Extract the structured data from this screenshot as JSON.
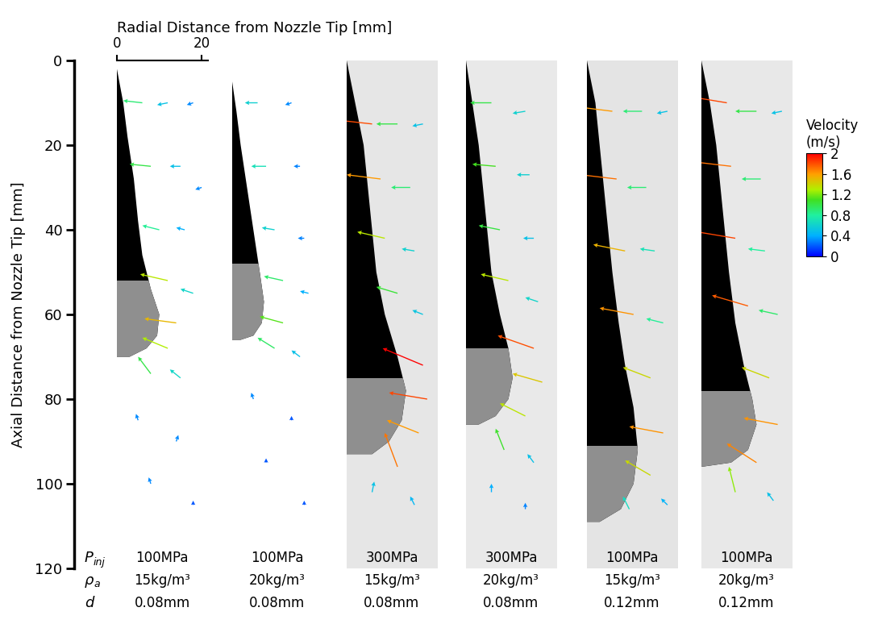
{
  "chart_data": {
    "type": "quiver",
    "x_label": "Radial Distance from Nozzle Tip [mm]",
    "xlim": [
      0,
      21.5
    ],
    "xticks": [
      0,
      20
    ],
    "y_label": "Axial Distance from Nozzle Tip [mm]",
    "ylim": [
      120,
      0
    ],
    "yticks": [
      0,
      20,
      40,
      60,
      80,
      100,
      120
    ],
    "colorbar": {
      "label": "Velocity\n(m/s)",
      "range": [
        0,
        2
      ],
      "ticks": [
        0,
        0.4,
        0.8,
        1.2,
        1.6,
        2
      ]
    },
    "condition_labels": [
      {
        "symbol": "P",
        "subscript": "inj"
      },
      {
        "symbol": "ρ",
        "subscript": "a"
      },
      {
        "symbol": "d"
      }
    ],
    "panels": [
      {
        "conditions": [
          "100MPa",
          "15kg/m³",
          "0.08mm"
        ],
        "spray_outline": [
          [
            0,
            2
          ],
          [
            1.5,
            10
          ],
          [
            2.5,
            18
          ],
          [
            4,
            28
          ],
          [
            5,
            38
          ],
          [
            6,
            46
          ],
          [
            8,
            54
          ],
          [
            10,
            60
          ],
          [
            9.5,
            65
          ],
          [
            7,
            68
          ],
          [
            3,
            70
          ],
          [
            0,
            70
          ]
        ],
        "vectors": [
          [
            6,
            10,
            -0.9,
            -0.1
          ],
          [
            12,
            10,
            -0.5,
            0.1
          ],
          [
            18,
            10,
            -0.3,
            0.1
          ],
          [
            8,
            25,
            -1.0,
            -0.1
          ],
          [
            15,
            25,
            -0.5,
            0
          ],
          [
            20,
            30,
            -0.3,
            0.1
          ],
          [
            10,
            40,
            -0.8,
            -0.2
          ],
          [
            16,
            40,
            -0.4,
            -0.1
          ],
          [
            12,
            52,
            -1.3,
            -0.3
          ],
          [
            18,
            55,
            -0.6,
            -0.2
          ],
          [
            14,
            62,
            -1.5,
            -0.2
          ],
          [
            12,
            68,
            -1.2,
            -0.5
          ],
          [
            8,
            74,
            -0.6,
            -0.8
          ],
          [
            15,
            75,
            -0.5,
            -0.4
          ],
          [
            5,
            85,
            -0.1,
            -0.3
          ],
          [
            14,
            90,
            0.1,
            -0.3
          ],
          [
            8,
            100,
            -0.1,
            -0.3
          ],
          [
            18,
            105,
            0,
            -0.2
          ]
        ]
      },
      {
        "conditions": [
          "100MPa",
          "20kg/m³",
          "0.08mm"
        ],
        "spray_outline": [
          [
            0,
            5
          ],
          [
            1,
            12
          ],
          [
            2,
            20
          ],
          [
            3.5,
            30
          ],
          [
            5,
            40
          ],
          [
            6.5,
            50
          ],
          [
            7.5,
            57
          ],
          [
            7,
            62
          ],
          [
            5,
            65
          ],
          [
            2,
            66
          ],
          [
            0,
            66
          ]
        ],
        "vectors": [
          [
            6,
            10,
            -0.6,
            0
          ],
          [
            14,
            10,
            -0.3,
            0.1
          ],
          [
            8,
            25,
            -0.7,
            0
          ],
          [
            16,
            25,
            -0.3,
            0
          ],
          [
            10,
            40,
            -0.6,
            -0.1
          ],
          [
            17,
            42,
            -0.3,
            0
          ],
          [
            12,
            52,
            -0.9,
            -0.2
          ],
          [
            18,
            55,
            -0.4,
            -0.1
          ],
          [
            12,
            62,
            -1.1,
            -0.3
          ],
          [
            10,
            68,
            -0.8,
            -0.5
          ],
          [
            16,
            70,
            -0.4,
            -0.3
          ],
          [
            5,
            80,
            -0.1,
            -0.3
          ],
          [
            14,
            85,
            0,
            -0.2
          ],
          [
            8,
            95,
            0,
            -0.2
          ],
          [
            17,
            105,
            0,
            -0.2
          ]
        ]
      },
      {
        "conditions": [
          "300MPa",
          "15kg/m³",
          "0.08mm"
        ],
        "spray_outline": [
          [
            0,
            0
          ],
          [
            2,
            10
          ],
          [
            4,
            20
          ],
          [
            5.5,
            35
          ],
          [
            7,
            50
          ],
          [
            9,
            60
          ],
          [
            12,
            70
          ],
          [
            14,
            78
          ],
          [
            13,
            85
          ],
          [
            10,
            90
          ],
          [
            6,
            93
          ],
          [
            0,
            93
          ]
        ],
        "vectors": [
          [
            6,
            15,
            -1.8,
            -0.2
          ],
          [
            12,
            15,
            -1.0,
            0
          ],
          [
            18,
            15,
            -0.5,
            0.1
          ],
          [
            8,
            28,
            -1.6,
            -0.2
          ],
          [
            15,
            30,
            -0.9,
            0
          ],
          [
            9,
            42,
            -1.3,
            -0.3
          ],
          [
            16,
            45,
            -0.6,
            -0.1
          ],
          [
            12,
            55,
            -1.0,
            -0.3
          ],
          [
            18,
            60,
            -0.5,
            -0.2
          ],
          [
            18,
            72,
            -1.9,
            -0.8
          ],
          [
            19,
            80,
            -1.8,
            -0.3
          ],
          [
            17,
            88,
            -1.5,
            -0.6
          ],
          [
            12,
            96,
            -0.6,
            -1.6
          ],
          [
            6,
            102,
            0.1,
            -0.5
          ],
          [
            16,
            105,
            -0.2,
            -0.4
          ]
        ]
      },
      {
        "conditions": [
          "300MPa",
          "20kg/m³",
          "0.08mm"
        ],
        "spray_outline": [
          [
            0,
            0
          ],
          [
            1.5,
            10
          ],
          [
            3,
            20
          ],
          [
            4.5,
            35
          ],
          [
            6,
            50
          ],
          [
            8,
            60
          ],
          [
            10,
            68
          ],
          [
            11,
            75
          ],
          [
            10,
            80
          ],
          [
            7,
            84
          ],
          [
            3,
            86
          ],
          [
            0,
            86
          ]
        ],
        "vectors": [
          [
            6,
            10,
            -1.0,
            0
          ],
          [
            14,
            12,
            -0.6,
            0.1
          ],
          [
            7,
            25,
            -1.1,
            -0.1
          ],
          [
            15,
            27,
            -0.6,
            0
          ],
          [
            8,
            40,
            -1.0,
            -0.2
          ],
          [
            16,
            42,
            -0.5,
            0
          ],
          [
            10,
            52,
            -1.3,
            -0.3
          ],
          [
            17,
            57,
            -0.6,
            -0.2
          ],
          [
            16,
            68,
            -1.7,
            -0.6
          ],
          [
            18,
            76,
            -1.4,
            -0.4
          ],
          [
            14,
            84,
            -1.2,
            -0.6
          ],
          [
            9,
            92,
            -0.4,
            -1.0
          ],
          [
            16,
            95,
            -0.3,
            -0.4
          ],
          [
            6,
            102,
            0,
            -0.4
          ],
          [
            14,
            106,
            0,
            -0.3
          ]
        ]
      },
      {
        "conditions": [
          "100MPa",
          "15kg/m³",
          "0.12mm"
        ],
        "spray_outline": [
          [
            0,
            0
          ],
          [
            2,
            10
          ],
          [
            3,
            20
          ],
          [
            4.5,
            35
          ],
          [
            6,
            50
          ],
          [
            7.5,
            62
          ],
          [
            9,
            72
          ],
          [
            11,
            82
          ],
          [
            12,
            92
          ],
          [
            11,
            100
          ],
          [
            8,
            106
          ],
          [
            3,
            109
          ],
          [
            0,
            109
          ]
        ],
        "vectors": [
          [
            6,
            12,
            -1.6,
            -0.2
          ],
          [
            13,
            12,
            -0.9,
            0
          ],
          [
            19,
            12,
            -0.5,
            0.1
          ],
          [
            7,
            28,
            -1.7,
            -0.2
          ],
          [
            14,
            30,
            -0.9,
            0
          ],
          [
            9,
            45,
            -1.5,
            -0.3
          ],
          [
            16,
            45,
            -0.7,
            -0.1
          ],
          [
            11,
            60,
            -1.6,
            -0.3
          ],
          [
            18,
            62,
            -0.8,
            -0.2
          ],
          [
            15,
            75,
            -1.3,
            -0.5
          ],
          [
            18,
            88,
            -1.6,
            -0.3
          ],
          [
            15,
            98,
            -1.2,
            -0.7
          ],
          [
            10,
            106,
            -0.3,
            -0.6
          ],
          [
            19,
            105,
            -0.3,
            -0.3
          ]
        ]
      },
      {
        "conditions": [
          "100MPa",
          "20kg/m³",
          "0.12mm"
        ],
        "spray_outline": [
          [
            0,
            0
          ],
          [
            2,
            10
          ],
          [
            3.5,
            20
          ],
          [
            5,
            35
          ],
          [
            6.5,
            50
          ],
          [
            8,
            62
          ],
          [
            10,
            72
          ],
          [
            12,
            80
          ],
          [
            13,
            86
          ],
          [
            11,
            92
          ],
          [
            7,
            95
          ],
          [
            0,
            96
          ]
        ],
        "vectors": [
          [
            6,
            10,
            -1.8,
            -0.3
          ],
          [
            13,
            12,
            -1.0,
            0
          ],
          [
            19,
            12,
            -0.5,
            0.1
          ],
          [
            7,
            25,
            -1.7,
            -0.2
          ],
          [
            14,
            28,
            -0.9,
            0
          ],
          [
            8,
            42,
            -1.8,
            -0.3
          ],
          [
            15,
            45,
            -0.8,
            -0.1
          ],
          [
            11,
            58,
            -1.7,
            -0.5
          ],
          [
            18,
            60,
            -0.9,
            -0.2
          ],
          [
            16,
            75,
            -1.3,
            -0.5
          ],
          [
            18,
            86,
            -1.6,
            -0.3
          ],
          [
            13,
            95,
            -1.4,
            -0.9
          ],
          [
            8,
            102,
            -0.3,
            -1.2
          ],
          [
            17,
            104,
            -0.3,
            -0.4
          ]
        ]
      }
    ]
  }
}
